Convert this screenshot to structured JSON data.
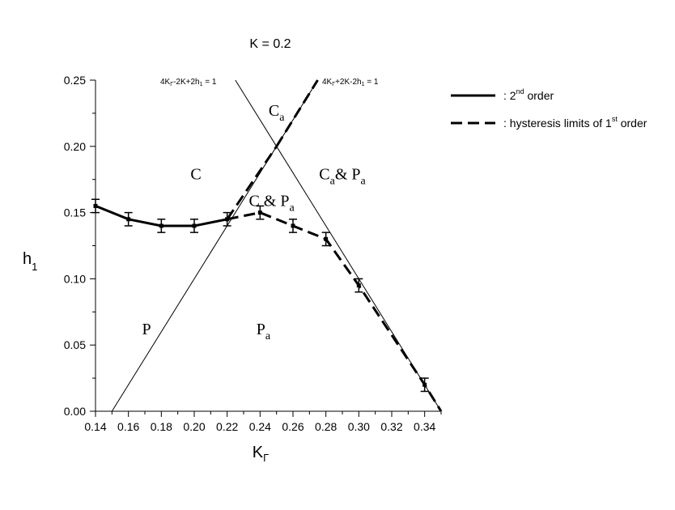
{
  "chart_data": {
    "type": "line",
    "title": "K = 0.2",
    "xlabel": "K",
    "xlabel_sub": "Γ",
    "ylabel": "h",
    "ylabel_sub": "1",
    "xlim": [
      0.14,
      0.35
    ],
    "ylim": [
      0.0,
      0.25
    ],
    "xticks": [
      "0.14",
      "0.16",
      "0.18",
      "0.20",
      "0.22",
      "0.24",
      "0.26",
      "0.28",
      "0.30",
      "0.32",
      "0.34"
    ],
    "yticks": [
      "0.00",
      "0.05",
      "0.10",
      "0.15",
      "0.20",
      "0.25"
    ],
    "boundary_lines": [
      {
        "label": "4KΓ+2K-2h₁ = 1",
        "x": [
          0.15,
          0.25
        ],
        "y": [
          0.0,
          0.2
        ]
      },
      {
        "label": "4KΓ-2K+2h₁ = 1",
        "x": [
          0.25,
          0.35
        ],
        "y": [
          0.2,
          0.0
        ]
      }
    ],
    "top_line_labels": [
      {
        "main": "4K",
        "sub": "Γ",
        "rest": "-2K+2h",
        "sub2": "1",
        "tail": " = 1"
      },
      {
        "main": "4K",
        "sub": "Γ",
        "rest": "+2K-2h",
        "sub2": "1",
        "tail": " = 1"
      }
    ],
    "series": [
      {
        "name": "2nd order",
        "style": "solid",
        "x": [
          0.14,
          0.16,
          0.18,
          0.2,
          0.22
        ],
        "y": [
          0.155,
          0.145,
          0.14,
          0.14,
          0.145
        ],
        "err": [
          0.005,
          0.005,
          0.005,
          0.005,
          0.005
        ]
      },
      {
        "name": "hysteresis limits of 1st order",
        "style": "dashed",
        "segments": [
          {
            "x": [
              0.22,
              0.25
            ],
            "y": [
              0.145,
              0.2
            ]
          },
          {
            "x": [
              0.25,
              0.275
            ],
            "y": [
              0.2,
              0.25
            ]
          },
          {
            "x": [
              0.22,
              0.24,
              0.26,
              0.28,
              0.3,
              0.34,
              0.35
            ],
            "y": [
              0.145,
              0.15,
              0.14,
              0.13,
              0.095,
              0.02,
              0.0
            ]
          }
        ],
        "points": {
          "x": [
            0.24,
            0.26,
            0.28,
            0.3,
            0.34
          ],
          "y": [
            0.15,
            0.14,
            0.13,
            0.095,
            0.02
          ],
          "err": [
            0.005,
            0.005,
            0.005,
            0.005,
            0.005
          ]
        }
      }
    ],
    "regions": [
      {
        "text": "C",
        "sub": "",
        "x": 0.201,
        "y": 0.175
      },
      {
        "text": "C",
        "sub": "a",
        "x": 0.25,
        "y": 0.223
      },
      {
        "text": "C",
        "sub": "a",
        "rest": "& P",
        "sub2": "a",
        "x": 0.29,
        "y": 0.175
      },
      {
        "text": "C & P",
        "sub": "a",
        "x": 0.247,
        "y": 0.155
      },
      {
        "text": "P",
        "sub": "",
        "x": 0.171,
        "y": 0.058
      },
      {
        "text": "P",
        "sub": "a",
        "x": 0.242,
        "y": 0.058
      }
    ],
    "legend": {
      "position": "right",
      "entries": [
        {
          "style": "solid",
          "prefix": ":  2",
          "sup": "nd",
          "suffix": " order"
        },
        {
          "style": "dashed",
          "prefix": ":  hysteresis limits of 1",
          "sup": "st",
          "suffix": " order"
        }
      ]
    }
  }
}
